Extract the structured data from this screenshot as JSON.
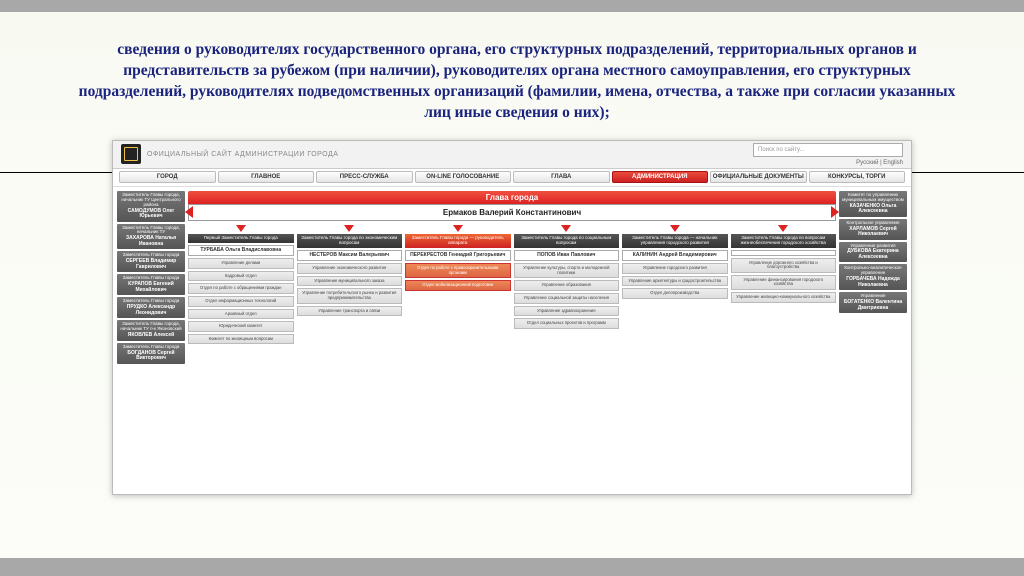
{
  "slide": {
    "title": "сведения о руководителях государственного органа, его структурных подразделений, территориальных органов и представительств за рубежом (при наличии), руководителях органа местного самоуправления, его структурных подразделений, руководителях подведомственных организаций (фамилии, имена, отчества, а также при согласии указанных лиц иные сведения о них);",
    "title_color": "#1a237e",
    "background": "#f8faf2"
  },
  "site": {
    "topbar_text": "ОФИЦИАЛЬНЫЙ САЙТ АДМИНИСТРАЦИИ ГОРОДА",
    "search_placeholder": "Поиск по сайту...",
    "lang": "Русский | English"
  },
  "nav": {
    "items": [
      {
        "label": "ГОРОД"
      },
      {
        "label": "ГЛАВНОЕ"
      },
      {
        "label": "ПРЕСС-СЛУЖБА"
      },
      {
        "label": "ON-LINE ГОЛОСОВАНИЕ"
      },
      {
        "label": "ГЛАВА"
      },
      {
        "label": "АДМИНИСТРАЦИЯ"
      },
      {
        "label": "ОФИЦИАЛЬНЫЕ ДОКУМЕНТЫ"
      },
      {
        "label": "КОНКУРСЫ, ТОРГИ"
      }
    ],
    "active_index": 5
  },
  "chart": {
    "head_label": "Глава города",
    "mayor": "Ермаков Валерий Константинович",
    "left_side": [
      {
        "role": "Заместитель Главы города, начальник ТУ Центрального района",
        "name": "САМОДУМОВ Олег Юрьевич"
      },
      {
        "role": "Заместитель Главы города, начальник ТУ",
        "name": "ЗАХАРОВА Наталья Ивановна"
      },
      {
        "role": "Заместитель Главы города",
        "name": "СЕРГЕЕВ Владимир Гаврилович"
      },
      {
        "role": "Заместитель Главы города",
        "name": "КУРАПОВ Евгений Михайлович"
      },
      {
        "role": "Заместитель Главы города",
        "name": "ПРУДКО Александр Леонидович"
      },
      {
        "role": "Заместитель Главы города, начальник ТУ п-к Яконовский",
        "name": "ЯКОВЛЕВ Алексей"
      },
      {
        "role": "Заместитель Главы города",
        "name": "БОГДАНОВ Сергей Викторович"
      }
    ],
    "right_side": [
      {
        "role": "Комитет по управлению муниципальным имуществом",
        "name": "КАЗАЧЕНКО Ольга Алексеевна"
      },
      {
        "role": "Контрольное управление",
        "name": "ХАРЛАМОВ Сергей Николаевич"
      },
      {
        "role": "Управление развития",
        "name": "ДУБКОВА Екатерина Алексеевна"
      },
      {
        "role": "Контрольно-аналитическое управление",
        "name": "ГОРБАЧЕВА Надежда Николаевна"
      },
      {
        "role": "Управление",
        "name": "БОГАТЕНКО Валентина Дмитриевна"
      }
    ],
    "columns": [
      {
        "head": "Первый Заместитель Главы города",
        "name": "ТУРБАБА Ольга Владиславовна",
        "subs": [
          "Управление делами",
          "Кадровый отдел",
          "Отдел по работе с обращениями граждан",
          "Отдел информационных технологий",
          "Архивный отдел",
          "Юридический комитет",
          "Комитет по жилищным вопросам"
        ]
      },
      {
        "head": "Заместитель Главы города по экономическим вопросам",
        "name": "НЕСТЕРОВ Максим Валерьевич",
        "subs": [
          "Управление экономического развития",
          "Управление муниципального заказа",
          "Управление потребительского рынка и развития предпринимательства",
          "Управление транспорта и связи"
        ]
      },
      {
        "head": "Заместитель Главы города — руководитель аппарата",
        "name": "ПЕРЕКРЕСТОВ Геннадий Григорьевич",
        "red": true,
        "subs": [
          "Отдел по работе с правоохранительными органами",
          "Отдел мобилизационной подготовки"
        ]
      },
      {
        "head": "Заместитель Главы города по социальным вопросам",
        "name": "ПОПОВ Иван Павлович",
        "subs": [
          "Управление культуры, спорта и молодежной политики",
          "Управление образования",
          "Управление социальной защиты населения",
          "Управление здравоохранения",
          "Отдел социальных проектов и программ"
        ]
      },
      {
        "head": "Заместитель Главы города — начальник управления городского развития",
        "name": "КАЛИНИН Андрей Владимирович",
        "subs": [
          "Управление городского развития",
          "Управление архитектуры и градостроительства",
          "Отдел делопроизводства"
        ]
      },
      {
        "head": "Заместитель Главы города по вопросам жизнеобеспечения городского хозяйства",
        "name": "",
        "subs": [
          "Управление дорожного хозяйства и благоустройства",
          "Управление финансирования городского хозяйства",
          "Управление жилищно-коммунального хозяйства"
        ]
      }
    ]
  },
  "colors": {
    "nav_active": "#e94a3a",
    "grey_cell": "#666666",
    "head_red": "#e04030",
    "arrow_red": "#d22222"
  }
}
